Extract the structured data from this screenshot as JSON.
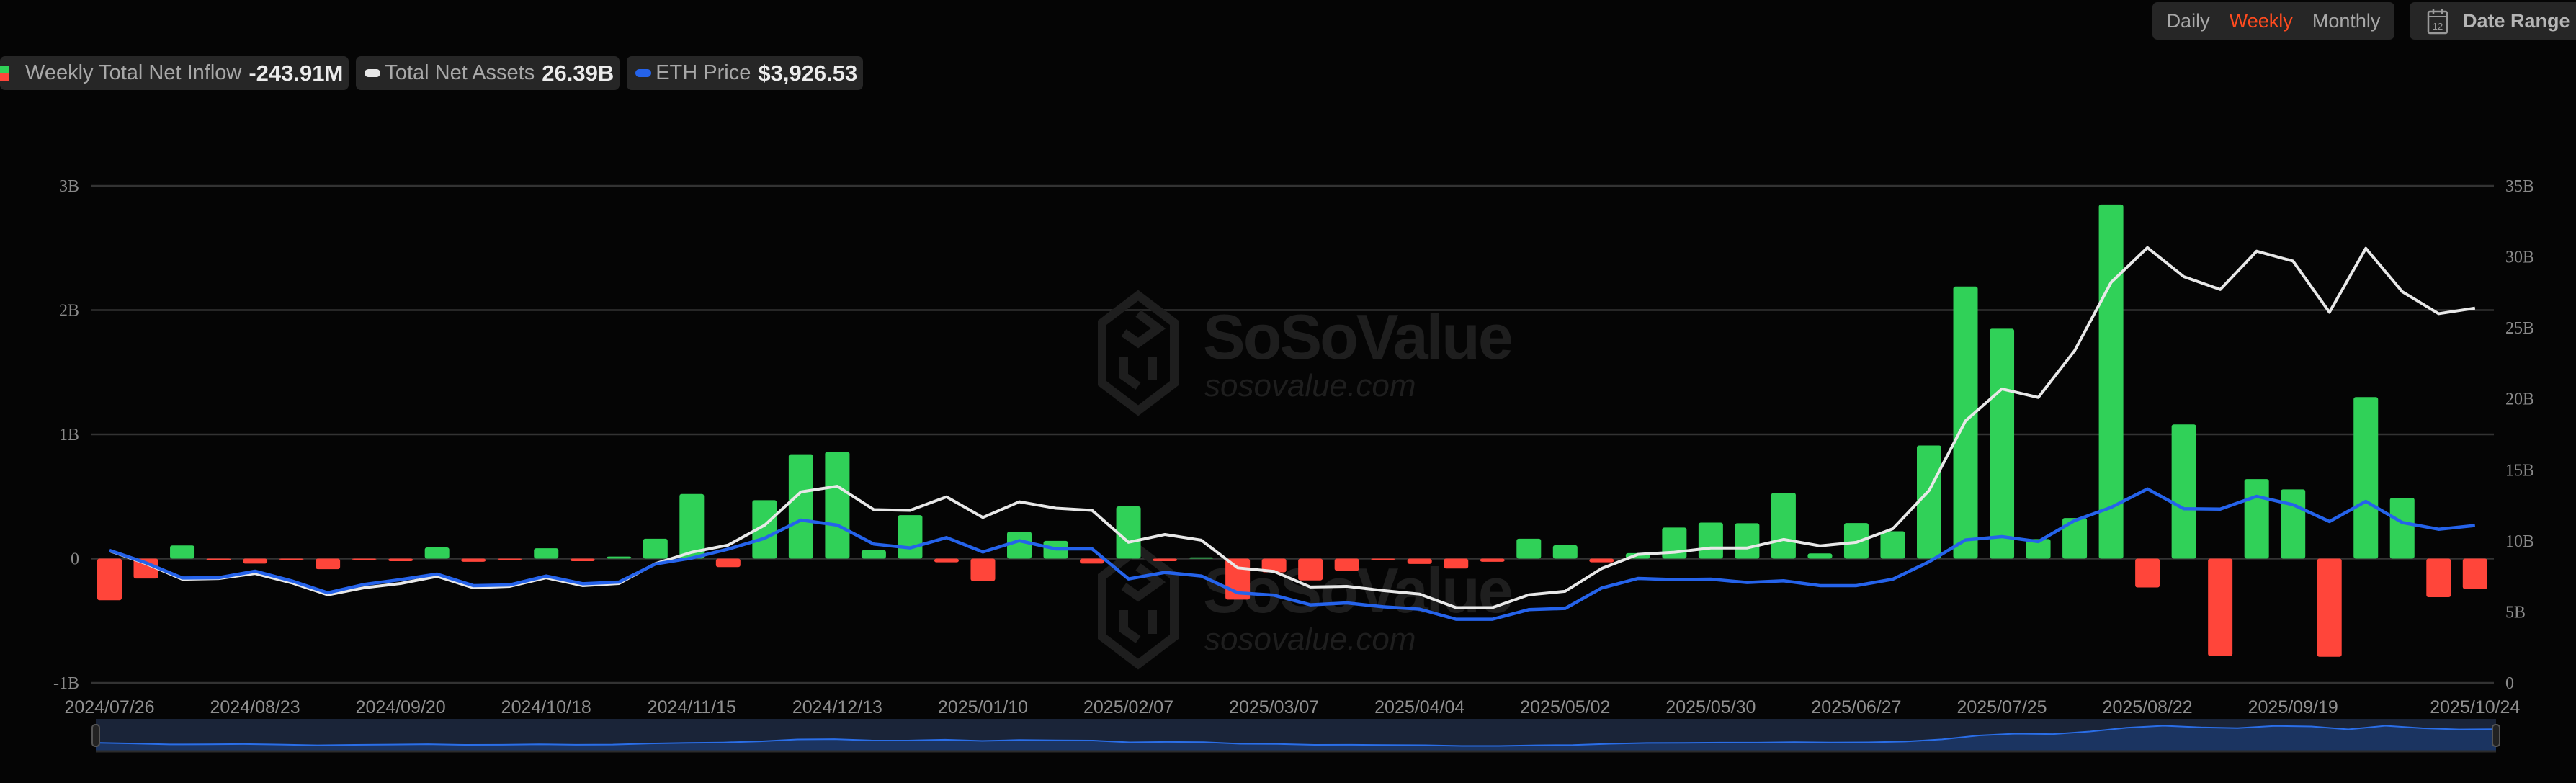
{
  "legend": {
    "inflow": {
      "label": "Weekly Total Net Inflow",
      "value": "-243.91M"
    },
    "assets": {
      "label": "Total Net Assets",
      "value": "26.39B"
    },
    "eth": {
      "label": "ETH Price",
      "value": "$3,926.53"
    }
  },
  "controls": {
    "periods": [
      "Daily",
      "Weekly",
      "Monthly"
    ],
    "active_period": "Weekly",
    "date_range_label": "Date Range",
    "calendar_icon_day": "12"
  },
  "watermark": {
    "brand": "SoSoValue",
    "url": "sosovalue.com"
  },
  "colors": {
    "inflow_positive": "#30d158",
    "inflow_negative": "#ff453a",
    "net_assets": "#e8e8e8",
    "eth_price": "#2563eb",
    "active_period": "#ff4b1f",
    "background": "#050505"
  },
  "chart_data": {
    "type": "bar+line",
    "grid": true,
    "legend_placement": "top-left",
    "x_tick_labels": [
      "2024/07/26",
      "2024/08/23",
      "2024/09/20",
      "2024/10/18",
      "2024/11/15",
      "2024/12/13",
      "2025/01/10",
      "2025/02/07",
      "2025/03/07",
      "2025/04/04",
      "2025/05/02",
      "2025/05/30",
      "2025/06/27",
      "2025/07/25",
      "2025/08/22",
      "2025/09/19",
      "2025/10/24"
    ],
    "left_axis": {
      "ticks": [
        "-1B",
        "0",
        "1B",
        "2B",
        "3B"
      ],
      "range_b": [
        -1,
        3
      ]
    },
    "right_axis": {
      "ticks": [
        "0",
        "5B",
        "10B",
        "15B",
        "20B",
        "25B",
        "30B",
        "35B"
      ],
      "range_b": [
        0,
        35
      ]
    },
    "x": [
      "2024/07/26",
      "2024/08/02",
      "2024/08/09",
      "2024/08/16",
      "2024/08/23",
      "2024/08/30",
      "2024/09/06",
      "2024/09/13",
      "2024/09/20",
      "2024/09/27",
      "2024/10/04",
      "2024/10/11",
      "2024/10/18",
      "2024/10/25",
      "2024/11/01",
      "2024/11/08",
      "2024/11/15",
      "2024/11/22",
      "2024/11/29",
      "2024/12/06",
      "2024/12/13",
      "2024/12/20",
      "2024/12/27",
      "2025/01/03",
      "2025/01/10",
      "2025/01/17",
      "2025/01/24",
      "2025/01/31",
      "2025/02/07",
      "2025/02/14",
      "2025/02/21",
      "2025/02/28",
      "2025/03/07",
      "2025/03/14",
      "2025/03/21",
      "2025/03/28",
      "2025/04/04",
      "2025/04/11",
      "2025/04/18",
      "2025/04/25",
      "2025/05/02",
      "2025/05/09",
      "2025/05/16",
      "2025/05/23",
      "2025/05/30",
      "2025/06/06",
      "2025/06/13",
      "2025/06/20",
      "2025/06/27",
      "2025/07/04",
      "2025/07/11",
      "2025/07/18",
      "2025/07/25",
      "2025/08/01",
      "2025/08/08",
      "2025/08/15",
      "2025/08/22",
      "2025/08/29",
      "2025/09/05",
      "2025/09/12",
      "2025/09/19",
      "2025/09/26",
      "2025/10/03",
      "2025/10/10",
      "2025/10/17",
      "2025/10/24"
    ],
    "series": [
      {
        "name": "Weekly Total Net Inflow",
        "type": "bar",
        "axis": "left",
        "unit": "B",
        "values": [
          -0.335,
          -0.16,
          0.106,
          -0.01,
          -0.04,
          -0.006,
          -0.085,
          -0.005,
          -0.02,
          0.09,
          -0.025,
          -0.002,
          0.083,
          -0.02,
          0.017,
          0.16,
          0.52,
          -0.068,
          0.47,
          0.84,
          0.86,
          0.068,
          0.35,
          -0.03,
          -0.18,
          0.217,
          0.143,
          -0.04,
          0.42,
          -0.02,
          0.01,
          -0.33,
          -0.11,
          -0.175,
          -0.097,
          -0.004,
          -0.043,
          -0.08,
          -0.025,
          0.16,
          0.108,
          -0.03,
          0.044,
          0.25,
          0.29,
          0.285,
          0.53,
          0.042,
          0.286,
          0.22,
          0.91,
          2.19,
          1.85,
          0.157,
          0.327,
          2.85,
          -0.232,
          1.08,
          -0.784,
          0.64,
          0.557,
          -0.79,
          1.3,
          0.49,
          -0.31,
          -0.244
        ]
      },
      {
        "name": "Total Net Assets",
        "type": "line",
        "axis": "right",
        "unit": "B",
        "values": [
          9.3,
          8.4,
          7.3,
          7.35,
          7.7,
          7.05,
          6.2,
          6.7,
          7.0,
          7.5,
          6.7,
          6.8,
          7.4,
          6.85,
          7.0,
          8.4,
          9.2,
          9.7,
          11.1,
          13.45,
          13.85,
          12.2,
          12.15,
          13.1,
          11.65,
          12.75,
          12.3,
          12.15,
          9.9,
          10.45,
          10.05,
          8.1,
          7.85,
          6.75,
          6.8,
          6.5,
          6.25,
          5.3,
          5.3,
          6.2,
          6.45,
          8.05,
          9.05,
          9.2,
          9.5,
          9.5,
          10.1,
          9.65,
          9.9,
          10.85,
          13.55,
          18.45,
          20.7,
          20.1,
          23.4,
          28.2,
          30.65,
          28.6,
          27.7,
          30.4,
          29.7,
          26.1,
          30.6,
          27.55,
          26.0,
          26.39
        ]
      },
      {
        "name": "ETH Price",
        "type": "line",
        "axis": "hidden",
        "unit": "USD",
        "values": [
          3307,
          2996,
          2618,
          2624,
          2786,
          2547,
          2247,
          2456,
          2576,
          2714,
          2427,
          2445,
          2666,
          2474,
          2516,
          2966,
          3115,
          3337,
          3607,
          4062,
          3936,
          3463,
          3367,
          3625,
          3266,
          3547,
          3343,
          3343,
          2594,
          2756,
          2667,
          2247,
          2187,
          1948,
          1995,
          1899,
          1840,
          1588,
          1588,
          1828,
          1858,
          2366,
          2606,
          2577,
          2588,
          2504,
          2547,
          2427,
          2427,
          2586,
          3022,
          3566,
          3649,
          3524,
          4051,
          4378,
          4838,
          4344,
          4336,
          4654,
          4444,
          4026,
          4528,
          4001,
          3833,
          3926.53
        ]
      }
    ]
  }
}
